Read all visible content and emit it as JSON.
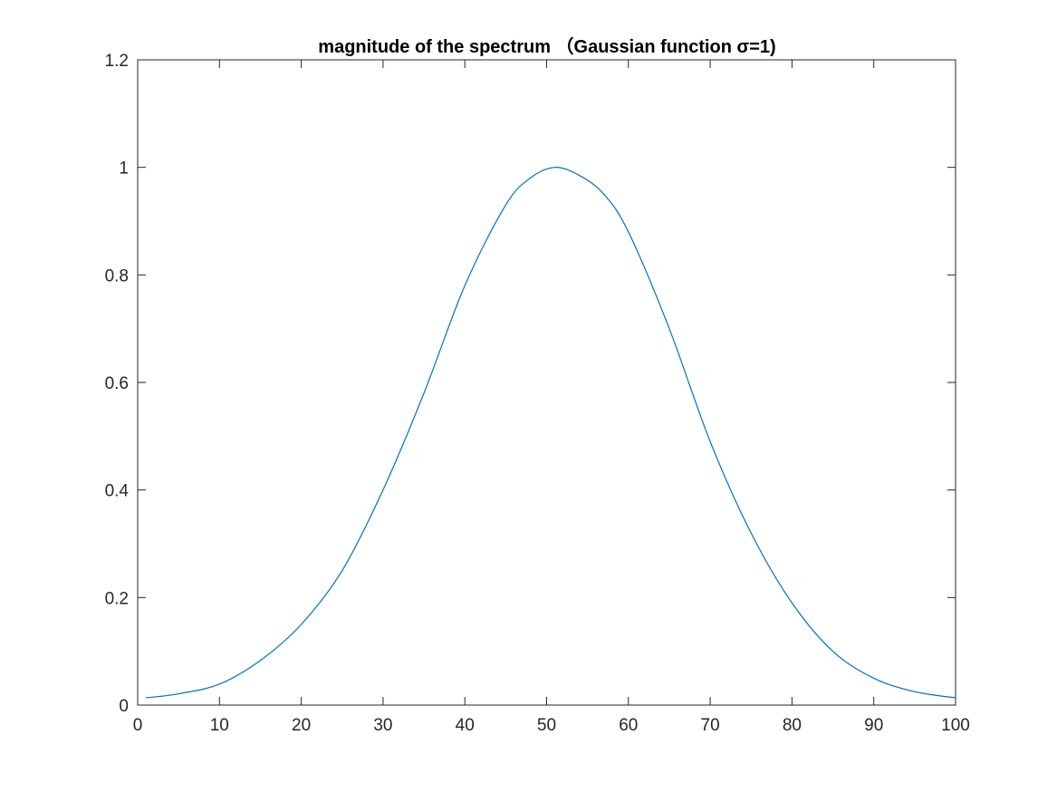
{
  "chart_data": {
    "type": "line",
    "title": "magnitude of the spectrum （Gaussian function σ=1)",
    "xlabel": "",
    "ylabel": "",
    "xlim": [
      0,
      100
    ],
    "ylim": [
      0,
      1.2
    ],
    "xticks": [
      0,
      10,
      20,
      30,
      40,
      50,
      60,
      70,
      80,
      90,
      100
    ],
    "xtick_labels": [
      "0",
      "10",
      "20",
      "30",
      "40",
      "50",
      "60",
      "70",
      "80",
      "90",
      "100"
    ],
    "yticks": [
      0,
      0.2,
      0.4,
      0.6,
      0.8,
      1.0,
      1.2
    ],
    "ytick_labels": [
      "0",
      "0.2",
      "0.4",
      "0.6",
      "0.8",
      "1",
      "1.2"
    ],
    "grid": false,
    "box": true,
    "line_color": "#0072BD",
    "series": [
      {
        "x": [
          1,
          5,
          10,
          15,
          20,
          25,
          30,
          35,
          40,
          45,
          48,
          51,
          54,
          57,
          60,
          65,
          70,
          75,
          80,
          85,
          90,
          95,
          100
        ],
        "y": [
          0.0135,
          0.021,
          0.039,
          0.083,
          0.15,
          0.25,
          0.4,
          0.58,
          0.78,
          0.93,
          0.98,
          1.0,
          0.985,
          0.95,
          0.88,
          0.7,
          0.49,
          0.32,
          0.19,
          0.1,
          0.05,
          0.025,
          0.0135
        ]
      }
    ]
  }
}
